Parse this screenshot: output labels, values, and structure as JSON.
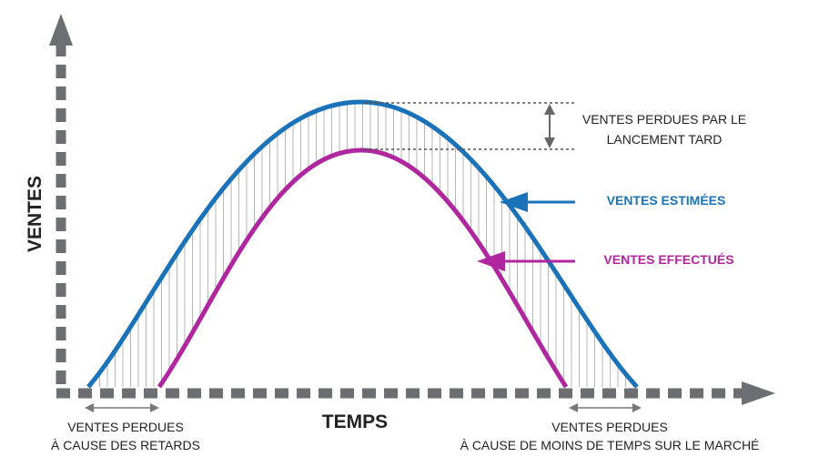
{
  "axes": {
    "y_label": "VENTES",
    "x_label": "TEMPS"
  },
  "annotations": {
    "late_launch": [
      "VENTES PERDUES PAR LE",
      "LANCEMENT TARD"
    ],
    "estimated": "VENTES ESTIMÉES",
    "actual": "VENTES EFFECTUÉS",
    "delay_loss": [
      "VENTES PERDUES",
      "À CAUSE DES RETARDS"
    ],
    "market_loss": [
      "VENTES PERDUES",
      "À CAUSE DE MOINS DE TEMPS SUR LE MARCHÉ"
    ]
  }
}
